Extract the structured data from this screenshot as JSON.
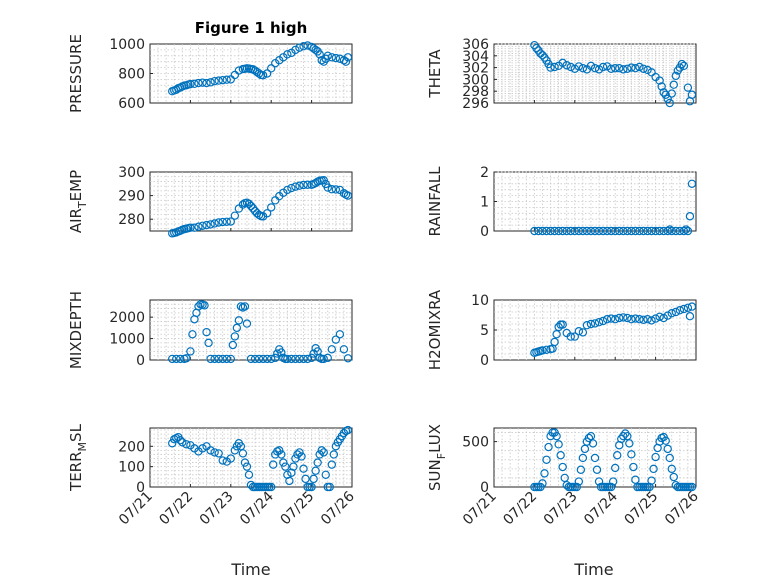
{
  "figure": {
    "title": "Figure 1 high",
    "marker_color": "#0072bd"
  },
  "chart_data": [
    {
      "type": "scatter",
      "ylabel": "PRESSURE",
      "ylim": [
        600,
        1000
      ],
      "yticks": [
        600,
        800,
        1000
      ],
      "xlim": [
        0,
        5
      ],
      "grid": true,
      "x": [
        0.55,
        0.6,
        0.65,
        0.7,
        0.75,
        0.8,
        0.85,
        0.9,
        0.95,
        1.0,
        1.1,
        1.2,
        1.3,
        1.4,
        1.5,
        1.6,
        1.7,
        1.8,
        1.9,
        2.0,
        2.1,
        2.2,
        2.3,
        2.35,
        2.4,
        2.45,
        2.5,
        2.55,
        2.6,
        2.65,
        2.7,
        2.75,
        2.8,
        2.9,
        3.0,
        3.1,
        3.2,
        3.3,
        3.4,
        3.5,
        3.6,
        3.7,
        3.8,
        3.9,
        4.0,
        4.05,
        4.1,
        4.15,
        4.2,
        4.25,
        4.3,
        4.35,
        4.4,
        4.5,
        4.6,
        4.7,
        4.8,
        4.85,
        4.9
      ],
      "y": [
        680,
        685,
        690,
        700,
        705,
        712,
        718,
        720,
        725,
        728,
        730,
        735,
        738,
        735,
        740,
        748,
        752,
        755,
        758,
        760,
        790,
        820,
        830,
        832,
        835,
        833,
        830,
        828,
        820,
        810,
        800,
        790,
        788,
        800,
        835,
        870,
        890,
        910,
        930,
        940,
        960,
        975,
        985,
        990,
        980,
        970,
        960,
        950,
        930,
        890,
        880,
        900,
        920,
        910,
        905,
        900,
        890,
        880,
        910
      ]
    },
    {
      "type": "scatter",
      "ylabel": "THETA",
      "ylim": [
        296,
        306
      ],
      "yticks": [
        296,
        298,
        300,
        302,
        304,
        306
      ],
      "xlim": [
        0,
        5
      ],
      "grid": true,
      "x": [
        1.0,
        1.05,
        1.1,
        1.15,
        1.2,
        1.25,
        1.3,
        1.35,
        1.4,
        1.5,
        1.6,
        1.7,
        1.8,
        1.9,
        2.0,
        2.1,
        2.2,
        2.3,
        2.4,
        2.5,
        2.6,
        2.7,
        2.8,
        2.9,
        3.0,
        3.1,
        3.2,
        3.3,
        3.4,
        3.5,
        3.6,
        3.7,
        3.8,
        3.9,
        4.0,
        4.1,
        4.15,
        4.2,
        4.25,
        4.3,
        4.35,
        4.4,
        4.45,
        4.5,
        4.55,
        4.6,
        4.65,
        4.7,
        4.8,
        4.85,
        4.9
      ],
      "y": [
        305.8,
        305.3,
        304.9,
        304.4,
        304.1,
        303.7,
        303.2,
        302.6,
        302.0,
        302.1,
        302.3,
        302.8,
        302.4,
        302.1,
        301.8,
        302.2,
        301.9,
        301.7,
        302.3,
        301.9,
        301.7,
        302.1,
        302.2,
        301.8,
        301.9,
        301.9,
        301.7,
        301.8,
        302.0,
        301.9,
        302.1,
        301.8,
        301.6,
        301.2,
        300.4,
        299.8,
        298.8,
        297.8,
        297.4,
        296.7,
        296.0,
        297.6,
        299.1,
        300.6,
        301.5,
        302.0,
        302.6,
        302.3,
        298.6,
        296.3,
        297.4
      ]
    },
    {
      "type": "scatter",
      "ylabel": "AIR_TEMP",
      "ylim": [
        275,
        300
      ],
      "yticks": [
        280,
        290,
        300
      ],
      "xlim": [
        0,
        5
      ],
      "grid": true,
      "x": [
        0.55,
        0.6,
        0.65,
        0.7,
        0.75,
        0.8,
        0.85,
        0.9,
        0.95,
        1.0,
        1.1,
        1.2,
        1.3,
        1.4,
        1.5,
        1.6,
        1.7,
        1.8,
        1.9,
        2.0,
        2.1,
        2.2,
        2.3,
        2.35,
        2.4,
        2.45,
        2.5,
        2.55,
        2.6,
        2.65,
        2.7,
        2.75,
        2.8,
        2.9,
        3.0,
        3.1,
        3.2,
        3.3,
        3.4,
        3.5,
        3.6,
        3.7,
        3.8,
        3.9,
        4.0,
        4.05,
        4.1,
        4.15,
        4.2,
        4.25,
        4.3,
        4.35,
        4.4,
        4.5,
        4.6,
        4.7,
        4.8,
        4.85,
        4.9
      ],
      "y": [
        274,
        274.2,
        274.4,
        274.8,
        275.1,
        275.5,
        275.8,
        276.0,
        276.2,
        276.4,
        276.4,
        276.8,
        277.2,
        277.5,
        277.8,
        278.2,
        278.6,
        278.8,
        278.9,
        279.0,
        281.5,
        284.5,
        286.2,
        286.8,
        287.0,
        286.5,
        285.6,
        284.6,
        283.5,
        282.5,
        281.8,
        281.3,
        281.2,
        282.5,
        285.0,
        288.0,
        289.8,
        291.2,
        292.4,
        293.2,
        293.8,
        294.2,
        294.5,
        294.6,
        294.6,
        294.9,
        295.3,
        295.9,
        296.3,
        296.4,
        296.5,
        294.9,
        293.4,
        292.7,
        292.6,
        292.4,
        291.0,
        290.4,
        290.0
      ]
    },
    {
      "type": "scatter",
      "ylabel": "RAINFALL",
      "ylim": [
        0,
        2
      ],
      "yticks": [
        0,
        1,
        2
      ],
      "xlim": [
        0,
        5
      ],
      "grid": true,
      "x": [
        1.0,
        1.1,
        1.2,
        1.3,
        1.4,
        1.5,
        1.6,
        1.7,
        1.8,
        1.9,
        2.0,
        2.1,
        2.2,
        2.3,
        2.4,
        2.5,
        2.6,
        2.7,
        2.8,
        2.9,
        3.0,
        3.1,
        3.2,
        3.3,
        3.4,
        3.5,
        3.6,
        3.7,
        3.8,
        3.9,
        4.0,
        4.1,
        4.2,
        4.3,
        4.35,
        4.4,
        4.5,
        4.6,
        4.7,
        4.75,
        4.8,
        4.85,
        4.9
      ],
      "y": [
        0,
        0,
        0,
        0,
        0,
        0,
        0,
        0,
        0,
        0,
        0,
        0,
        0,
        0,
        0,
        0,
        0,
        0,
        0,
        0,
        0,
        0,
        0,
        0,
        0,
        0,
        0,
        0,
        0,
        0,
        0,
        0,
        0,
        0,
        0.05,
        0,
        0,
        0,
        0,
        0.05,
        0,
        0.5,
        1.6
      ]
    },
    {
      "type": "scatter",
      "ylabel": "MIXDEPTH",
      "ylim": [
        0,
        2800
      ],
      "yticks": [
        0,
        1000,
        2000
      ],
      "xlim": [
        0,
        5
      ],
      "grid": true,
      "x": [
        0.55,
        0.65,
        0.75,
        0.85,
        0.9,
        1.0,
        1.05,
        1.1,
        1.15,
        1.2,
        1.25,
        1.3,
        1.35,
        1.4,
        1.45,
        1.5,
        1.6,
        1.7,
        1.8,
        1.9,
        2.0,
        2.05,
        2.1,
        2.15,
        2.2,
        2.25,
        2.3,
        2.35,
        2.4,
        2.5,
        2.6,
        2.7,
        2.8,
        2.9,
        3.0,
        3.1,
        3.15,
        3.2,
        3.25,
        3.3,
        3.35,
        3.4,
        3.5,
        3.6,
        3.7,
        3.8,
        3.9,
        4.0,
        4.05,
        4.1,
        4.15,
        4.2,
        4.25,
        4.3,
        4.4,
        4.5,
        4.6,
        4.7,
        4.8,
        4.9
      ],
      "y": [
        50,
        50,
        50,
        50,
        80,
        400,
        1200,
        1900,
        2200,
        2500,
        2600,
        2580,
        2550,
        1300,
        800,
        50,
        50,
        50,
        50,
        50,
        50,
        700,
        1100,
        1500,
        1850,
        2500,
        2450,
        2500,
        1700,
        50,
        50,
        50,
        50,
        50,
        50,
        100,
        300,
        500,
        350,
        100,
        50,
        50,
        50,
        50,
        50,
        50,
        50,
        100,
        300,
        550,
        400,
        100,
        50,
        50,
        100,
        500,
        950,
        1200,
        500,
        80
      ]
    },
    {
      "type": "scatter",
      "ylabel": "H2OMIXRA",
      "ylim": [
        0,
        10
      ],
      "yticks": [
        0,
        5,
        10
      ],
      "xlim": [
        0,
        5
      ],
      "grid": true,
      "x": [
        1.0,
        1.05,
        1.1,
        1.15,
        1.2,
        1.3,
        1.4,
        1.45,
        1.5,
        1.55,
        1.6,
        1.65,
        1.7,
        1.8,
        1.9,
        2.0,
        2.1,
        2.2,
        2.3,
        2.4,
        2.5,
        2.6,
        2.7,
        2.8,
        2.9,
        3.0,
        3.1,
        3.2,
        3.3,
        3.4,
        3.5,
        3.6,
        3.7,
        3.8,
        3.9,
        4.0,
        4.1,
        4.2,
        4.3,
        4.4,
        4.5,
        4.6,
        4.7,
        4.8,
        4.85,
        4.9
      ],
      "y": [
        1.2,
        1.3,
        1.4,
        1.5,
        1.6,
        1.7,
        1.8,
        1.9,
        3.0,
        4.3,
        5.5,
        5.9,
        5.9,
        4.5,
        3.9,
        3.9,
        4.8,
        4.6,
        5.8,
        6.0,
        6.1,
        6.3,
        6.5,
        6.8,
        6.9,
        6.8,
        7.0,
        7.1,
        7.0,
        6.8,
        6.9,
        6.8,
        6.7,
        6.8,
        6.6,
        6.9,
        7.2,
        7.0,
        7.4,
        7.8,
        8.0,
        8.3,
        8.5,
        8.7,
        7.3,
        8.9
      ]
    },
    {
      "type": "scatter",
      "ylabel": "TERR_MSL",
      "ylim": [
        0,
        290
      ],
      "yticks": [
        0,
        100,
        200
      ],
      "xlim": [
        0,
        5
      ],
      "grid": true,
      "x": [
        0.55,
        0.6,
        0.65,
        0.7,
        0.75,
        0.8,
        0.9,
        1.0,
        1.1,
        1.2,
        1.3,
        1.4,
        1.5,
        1.6,
        1.7,
        1.8,
        1.9,
        2.0,
        2.1,
        2.15,
        2.2,
        2.25,
        2.3,
        2.35,
        2.4,
        2.45,
        2.5,
        2.55,
        2.6,
        2.65,
        2.7,
        2.75,
        2.8,
        2.85,
        2.9,
        2.95,
        3.0,
        3.05,
        3.1,
        3.15,
        3.2,
        3.25,
        3.3,
        3.35,
        3.4,
        3.45,
        3.5,
        3.55,
        3.6,
        3.65,
        3.7,
        3.75,
        3.8,
        3.85,
        3.9,
        3.95,
        4.0,
        4.05,
        4.1,
        4.15,
        4.2,
        4.25,
        4.3,
        4.35,
        4.4,
        4.45,
        4.5,
        4.55,
        4.6,
        4.65,
        4.7,
        4.75,
        4.8,
        4.85,
        4.9
      ],
      "y": [
        215,
        235,
        240,
        245,
        230,
        220,
        210,
        205,
        190,
        175,
        190,
        200,
        180,
        170,
        165,
        130,
        125,
        140,
        180,
        200,
        215,
        200,
        165,
        120,
        100,
        60,
        10,
        0,
        0,
        0,
        0,
        0,
        0,
        0,
        0,
        0,
        0,
        110,
        160,
        175,
        180,
        160,
        120,
        100,
        60,
        30,
        70,
        100,
        140,
        160,
        170,
        150,
        90,
        40,
        0,
        0,
        0,
        40,
        80,
        120,
        160,
        180,
        170,
        60,
        0,
        0,
        110,
        160,
        200,
        220,
        235,
        250,
        265,
        275,
        280
      ]
    },
    {
      "type": "scatter",
      "ylabel": "SUN_FLUX",
      "ylim": [
        0,
        650
      ],
      "yticks": [
        0,
        500
      ],
      "xlim": [
        0,
        5
      ],
      "grid": true,
      "x": [
        1.0,
        1.05,
        1.1,
        1.15,
        1.2,
        1.25,
        1.3,
        1.35,
        1.4,
        1.45,
        1.5,
        1.55,
        1.6,
        1.65,
        1.7,
        1.75,
        1.8,
        1.85,
        1.9,
        1.95,
        2.0,
        2.05,
        2.1,
        2.15,
        2.2,
        2.25,
        2.3,
        2.35,
        2.4,
        2.45,
        2.5,
        2.55,
        2.6,
        2.65,
        2.7,
        2.75,
        2.8,
        2.85,
        2.9,
        2.95,
        3.0,
        3.05,
        3.1,
        3.15,
        3.2,
        3.25,
        3.3,
        3.35,
        3.4,
        3.45,
        3.5,
        3.55,
        3.6,
        3.65,
        3.7,
        3.75,
        3.8,
        3.85,
        3.9,
        3.95,
        4.0,
        4.05,
        4.1,
        4.15,
        4.2,
        4.25,
        4.3,
        4.35,
        4.4,
        4.45,
        4.5,
        4.55,
        4.6,
        4.65,
        4.7,
        4.75,
        4.8,
        4.85,
        4.9
      ],
      "y": [
        0,
        0,
        0,
        0,
        40,
        150,
        300,
        440,
        560,
        600,
        600,
        560,
        470,
        350,
        220,
        100,
        20,
        0,
        0,
        0,
        0,
        0,
        60,
        190,
        320,
        420,
        500,
        540,
        560,
        480,
        320,
        190,
        60,
        0,
        0,
        0,
        0,
        0,
        0,
        60,
        210,
        350,
        460,
        530,
        560,
        590,
        560,
        480,
        360,
        220,
        80,
        0,
        0,
        0,
        0,
        0,
        0,
        0,
        70,
        200,
        330,
        430,
        500,
        540,
        550,
        510,
        420,
        320,
        200,
        110,
        20,
        0,
        0,
        0,
        0,
        0,
        0,
        0,
        0
      ]
    }
  ],
  "xaxis": {
    "ticks": [
      "07/21",
      "07/22",
      "07/23",
      "07/24",
      "07/25",
      "07/26"
    ],
    "label": "Time"
  }
}
